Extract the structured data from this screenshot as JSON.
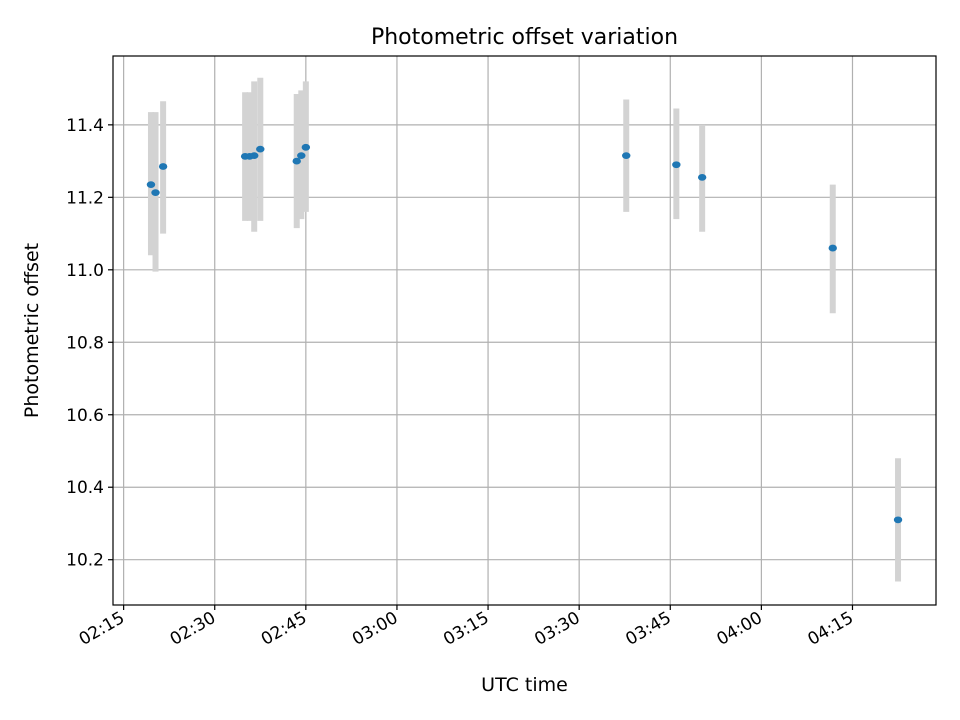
{
  "chart_data": {
    "type": "scatter",
    "title": "Photometric offset variation",
    "xlabel": "UTC time",
    "ylabel": "Photometric offset",
    "x_ticks": [
      "02:15",
      "02:30",
      "02:45",
      "03:00",
      "03:15",
      "03:30",
      "03:45",
      "04:00",
      "04:15"
    ],
    "y_ticks": [
      "10.2",
      "10.4",
      "10.6",
      "10.8",
      "11.0",
      "11.2",
      "11.4"
    ],
    "xlim": [
      "02:13:15",
      "04:28:45"
    ],
    "ylim": [
      10.075,
      11.59
    ],
    "grid": true,
    "colors": {
      "points": "#1f77b4",
      "error_bars": "#d3d3d3",
      "grid": "#b0b0b0"
    },
    "points": [
      {
        "x": "02:19:30",
        "y": 11.235,
        "ylow": 11.04,
        "yhigh": 11.435
      },
      {
        "x": "02:20:15",
        "y": 11.213,
        "ylow": 10.995,
        "yhigh": 11.435
      },
      {
        "x": "02:21:30",
        "y": 11.285,
        "ylow": 11.1,
        "yhigh": 11.465
      },
      {
        "x": "02:35:00",
        "y": 11.313,
        "ylow": 11.135,
        "yhigh": 11.49
      },
      {
        "x": "02:35:45",
        "y": 11.313,
        "ylow": 11.135,
        "yhigh": 11.49
      },
      {
        "x": "02:36:30",
        "y": 11.315,
        "ylow": 11.105,
        "yhigh": 11.52
      },
      {
        "x": "02:37:30",
        "y": 11.333,
        "ylow": 11.135,
        "yhigh": 11.53
      },
      {
        "x": "02:43:30",
        "y": 11.3,
        "ylow": 11.115,
        "yhigh": 11.485
      },
      {
        "x": "02:44:15",
        "y": 11.315,
        "ylow": 11.14,
        "yhigh": 11.495
      },
      {
        "x": "02:45:00",
        "y": 11.338,
        "ylow": 11.16,
        "yhigh": 11.52
      },
      {
        "x": "03:37:45",
        "y": 11.315,
        "ylow": 11.16,
        "yhigh": 11.47
      },
      {
        "x": "03:46:00",
        "y": 11.29,
        "ylow": 11.14,
        "yhigh": 11.445
      },
      {
        "x": "03:50:15",
        "y": 11.255,
        "ylow": 11.105,
        "yhigh": 11.4
      },
      {
        "x": "04:11:45",
        "y": 11.06,
        "ylow": 10.88,
        "yhigh": 11.235
      },
      {
        "x": "04:22:30",
        "y": 10.31,
        "ylow": 10.14,
        "yhigh": 10.48
      }
    ]
  }
}
